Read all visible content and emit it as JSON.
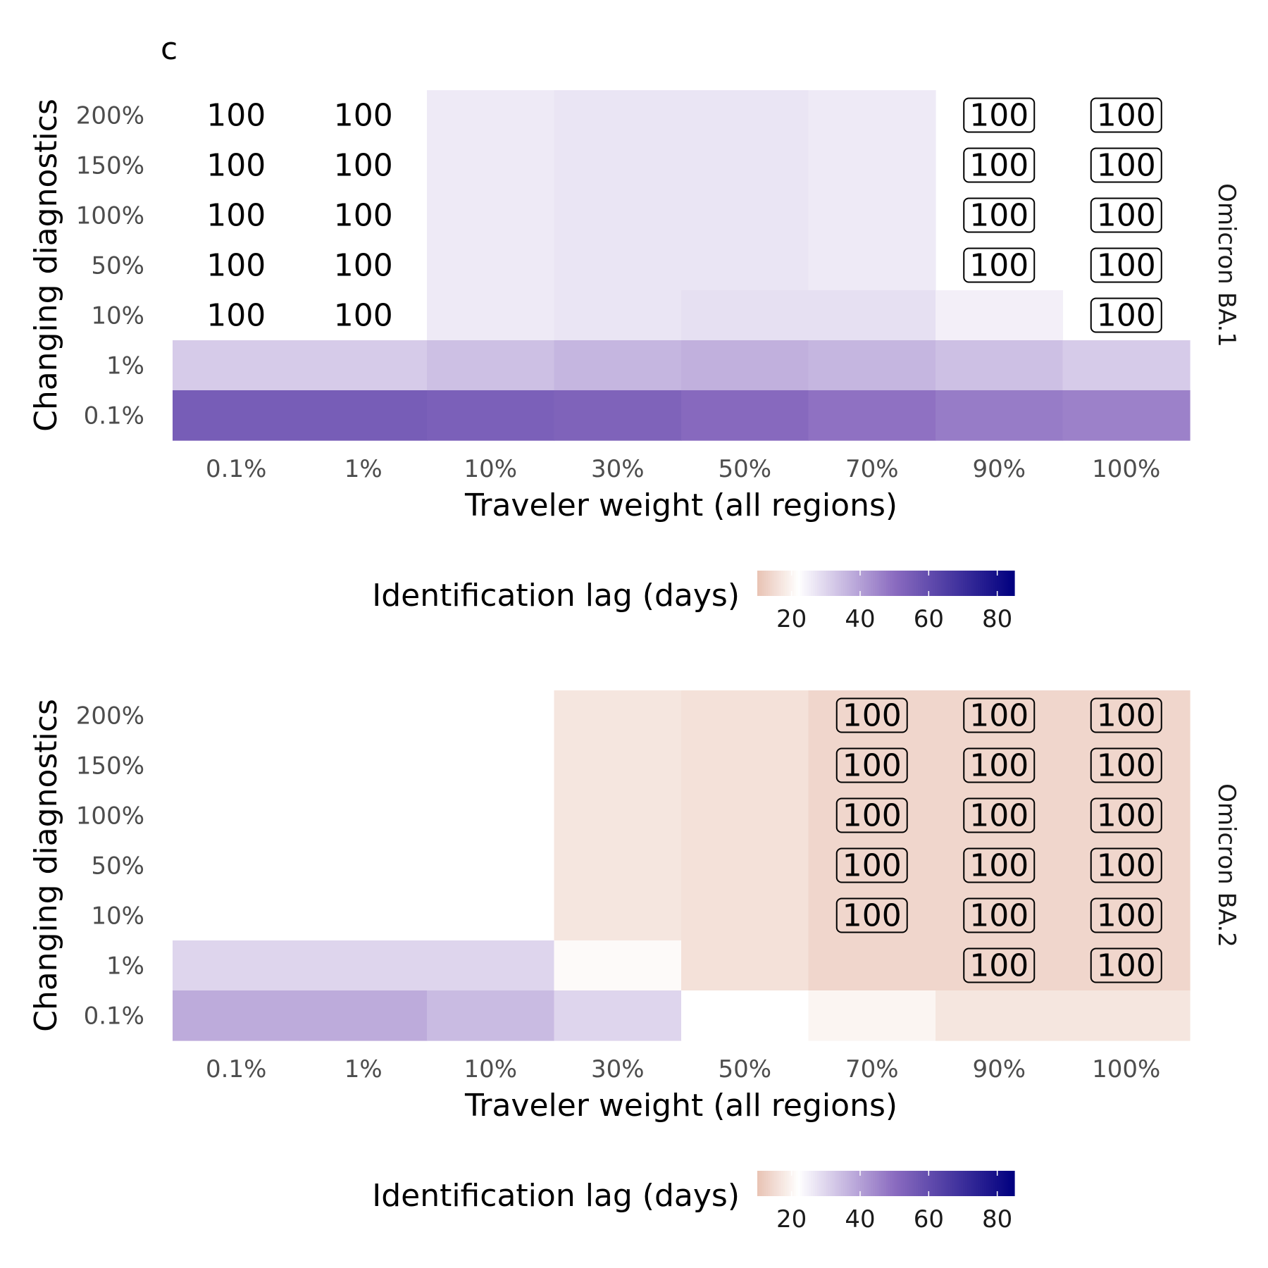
{
  "panel_label": "c",
  "legend": {
    "title": "Identification lag (days)",
    "ticks": [
      20,
      40,
      60,
      80
    ],
    "range": [
      10,
      85
    ],
    "colors": {
      "low": "#e8c2b3",
      "mid": "#ffffff",
      "mid2": "#8b6cc0",
      "high": "#00007f"
    }
  },
  "chart_data": [
    {
      "type": "heatmap",
      "facet_label": "Omicron BA.1",
      "xlabel": "Traveler weight (all regions)",
      "ylabel": "Changing diagnostics",
      "x_categories": [
        "0.1%",
        "1%",
        "10%",
        "30%",
        "50%",
        "70%",
        "90%",
        "100%"
      ],
      "y_categories": [
        "200%",
        "150%",
        "100%",
        "50%",
        "10%",
        "1%",
        "0.1%"
      ],
      "values": [
        [
          null,
          null,
          26,
          27,
          27,
          26,
          null,
          null
        ],
        [
          null,
          null,
          26,
          27,
          27,
          26,
          null,
          null
        ],
        [
          null,
          null,
          26,
          27,
          27,
          26,
          null,
          null
        ],
        [
          null,
          null,
          26,
          27,
          27,
          26,
          null,
          null
        ],
        [
          null,
          null,
          26,
          27,
          28,
          28,
          25,
          null
        ],
        [
          32,
          32,
          34,
          36,
          37,
          36,
          34,
          32
        ],
        [
          55,
          55,
          54,
          53,
          51,
          49,
          47,
          46
        ]
      ],
      "labels": [
        [
          "100",
          "100",
          "",
          "",
          "",
          "",
          "100",
          "100"
        ],
        [
          "100",
          "100",
          "",
          "",
          "",
          "",
          "100",
          "100"
        ],
        [
          "100",
          "100",
          "",
          "",
          "",
          "",
          "100",
          "100"
        ],
        [
          "100",
          "100",
          "",
          "",
          "",
          "",
          "100",
          "100"
        ],
        [
          "100",
          "100",
          "",
          "",
          "",
          "",
          "",
          "100"
        ],
        [
          "",
          "",
          "",
          "",
          "",
          "",
          "",
          ""
        ],
        [
          "",
          "",
          "",
          "",
          "",
          "",
          "",
          ""
        ]
      ],
      "boxed_labels": [
        [
          false,
          false,
          false,
          false,
          false,
          false,
          true,
          true
        ],
        [
          false,
          false,
          false,
          false,
          false,
          false,
          true,
          true
        ],
        [
          false,
          false,
          false,
          false,
          false,
          false,
          true,
          true
        ],
        [
          false,
          false,
          false,
          false,
          false,
          false,
          true,
          true
        ],
        [
          false,
          false,
          false,
          false,
          false,
          false,
          false,
          true
        ],
        [
          false,
          false,
          false,
          false,
          false,
          false,
          false,
          false
        ],
        [
          false,
          false,
          false,
          false,
          false,
          false,
          false,
          false
        ]
      ]
    },
    {
      "type": "heatmap",
      "facet_label": "Omicron BA.2",
      "xlabel": "Traveler weight (all regions)",
      "ylabel": "Changing diagnostics",
      "x_categories": [
        "0.1%",
        "1%",
        "10%",
        "30%",
        "50%",
        "70%",
        "90%",
        "100%"
      ],
      "y_categories": [
        "200%",
        "150%",
        "100%",
        "50%",
        "10%",
        "1%",
        "0.1%"
      ],
      "values": [
        [
          null,
          null,
          22,
          17,
          16,
          14,
          14,
          14
        ],
        [
          null,
          null,
          22,
          17,
          16,
          14,
          14,
          14
        ],
        [
          null,
          null,
          22,
          17,
          16,
          14,
          14,
          14
        ],
        [
          null,
          null,
          22,
          17,
          16,
          14,
          14,
          14
        ],
        [
          null,
          null,
          22,
          17,
          16,
          14,
          14,
          14
        ],
        [
          30,
          30,
          30,
          21,
          16,
          14,
          14,
          14
        ],
        [
          38,
          38,
          35,
          30,
          22,
          20,
          17,
          17
        ]
      ],
      "labels": [
        [
          "",
          "",
          "",
          "",
          "",
          "100",
          "100",
          "100"
        ],
        [
          "",
          "",
          "",
          "",
          "",
          "100",
          "100",
          "100"
        ],
        [
          "",
          "",
          "",
          "",
          "",
          "100",
          "100",
          "100"
        ],
        [
          "",
          "",
          "",
          "",
          "",
          "100",
          "100",
          "100"
        ],
        [
          "",
          "",
          "",
          "",
          "",
          "100",
          "100",
          "100"
        ],
        [
          "",
          "",
          "",
          "",
          "",
          "",
          "100",
          "100"
        ],
        [
          "",
          "",
          "",
          "",
          "",
          "",
          "",
          ""
        ]
      ],
      "boxed_labels": [
        [
          false,
          false,
          false,
          false,
          false,
          true,
          true,
          true
        ],
        [
          false,
          false,
          false,
          false,
          false,
          true,
          true,
          true
        ],
        [
          false,
          false,
          false,
          false,
          false,
          true,
          true,
          true
        ],
        [
          false,
          false,
          false,
          false,
          false,
          true,
          true,
          true
        ],
        [
          false,
          false,
          false,
          false,
          false,
          true,
          true,
          true
        ],
        [
          false,
          false,
          false,
          false,
          false,
          false,
          true,
          true
        ],
        [
          false,
          false,
          false,
          false,
          false,
          false,
          false,
          false
        ]
      ]
    }
  ]
}
